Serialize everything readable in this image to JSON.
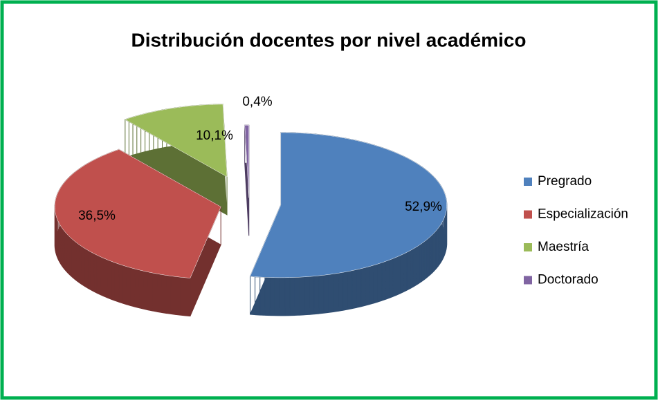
{
  "chart_data": {
    "type": "pie",
    "title": "Distribución docentes por nivel académico",
    "categories": [
      "Pregrado",
      "Especialización",
      "Maestría",
      "Doctorado"
    ],
    "values": [
      52.9,
      36.5,
      10.1,
      0.4
    ],
    "value_labels": [
      "52,9%",
      "36,5%",
      "10,1%",
      "0,4%"
    ],
    "colors": [
      "#4f81bd",
      "#c0504d",
      "#9bbb59",
      "#8064a2"
    ],
    "legend": "right"
  }
}
